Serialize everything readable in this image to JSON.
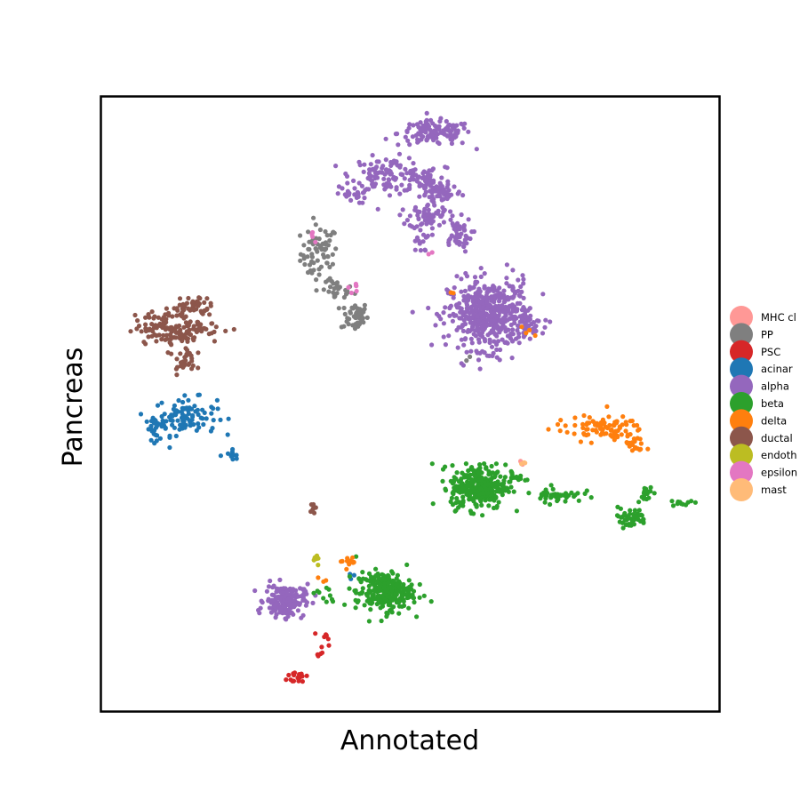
{
  "chart_data": {
    "type": "scatter",
    "title": "",
    "xlabel": "Annotated",
    "ylabel": "Pancreas",
    "xlim": [
      0,
      100
    ],
    "ylim": [
      0,
      100
    ],
    "grid": false,
    "ticks": false,
    "legend_placement": "right",
    "series": [
      {
        "name": "MHC cl",
        "color": "#ff9896",
        "clusters": [
          {
            "cx": 68.0,
            "cy": 40.3,
            "sx": 0.4,
            "sy": 0.3,
            "n": 4
          }
        ]
      },
      {
        "name": "PP",
        "color": "#7f7f7f",
        "clusters": [
          {
            "cx": 35.3,
            "cy": 74.5,
            "sx": 1.5,
            "sy": 2.3,
            "n": 70
          },
          {
            "cx": 38.3,
            "cy": 68.4,
            "sx": 1.3,
            "sy": 0.8,
            "n": 25
          },
          {
            "cx": 41.0,
            "cy": 64.3,
            "sx": 1.1,
            "sy": 1.2,
            "n": 45
          },
          {
            "cx": 59.2,
            "cy": 57.5,
            "sx": 0.4,
            "sy": 0.4,
            "n": 2
          }
        ]
      },
      {
        "name": "PSC",
        "color": "#d62728",
        "clusters": [
          {
            "cx": 32.1,
            "cy": 5.7,
            "sx": 1.0,
            "sy": 0.6,
            "n": 20
          },
          {
            "cx": 35.1,
            "cy": 9.6,
            "sx": 0.4,
            "sy": 0.6,
            "n": 6
          },
          {
            "cx": 36.4,
            "cy": 12.0,
            "sx": 0.5,
            "sy": 0.6,
            "n": 7
          }
        ]
      },
      {
        "name": "acinar",
        "color": "#1f77b4",
        "clusters": [
          {
            "cx": 13.7,
            "cy": 48.0,
            "sx": 2.5,
            "sy": 1.5,
            "n": 95
          },
          {
            "cx": 9.0,
            "cy": 46.0,
            "sx": 0.9,
            "sy": 0.9,
            "n": 25
          },
          {
            "cx": 21.0,
            "cy": 41.7,
            "sx": 1.0,
            "sy": 0.4,
            "n": 10
          },
          {
            "cx": 40.2,
            "cy": 22.3,
            "sx": 0.4,
            "sy": 0.4,
            "n": 3
          }
        ]
      },
      {
        "name": "alpha",
        "color": "#9467bd",
        "clusters": [
          {
            "cx": 54.0,
            "cy": 94.0,
            "sx": 3.0,
            "sy": 1.0,
            "n": 130
          },
          {
            "cx": 46.5,
            "cy": 87.3,
            "sx": 3.0,
            "sy": 1.4,
            "n": 120
          },
          {
            "cx": 52.8,
            "cy": 85.5,
            "sx": 1.4,
            "sy": 1.5,
            "n": 60
          },
          {
            "cx": 55.5,
            "cy": 84.5,
            "sx": 1.4,
            "sy": 0.9,
            "n": 40
          },
          {
            "cx": 53.0,
            "cy": 80.5,
            "sx": 1.6,
            "sy": 1.0,
            "n": 60
          },
          {
            "cx": 57.5,
            "cy": 77.5,
            "sx": 1.2,
            "sy": 1.4,
            "n": 50
          },
          {
            "cx": 40.5,
            "cy": 84.0,
            "sx": 1.2,
            "sy": 0.7,
            "n": 20
          },
          {
            "cx": 51.8,
            "cy": 76.5,
            "sx": 0.8,
            "sy": 1.0,
            "n": 15
          },
          {
            "cx": 62.8,
            "cy": 64.5,
            "sx": 3.3,
            "sy": 2.8,
            "n": 520
          },
          {
            "cx": 69.0,
            "cy": 63.0,
            "sx": 1.2,
            "sy": 1.0,
            "n": 20
          },
          {
            "cx": 29.7,
            "cy": 18.0,
            "sx": 1.6,
            "sy": 1.3,
            "n": 170
          },
          {
            "cx": 33.0,
            "cy": 19.5,
            "sx": 0.6,
            "sy": 0.6,
            "n": 4
          }
        ]
      },
      {
        "name": "beta",
        "color": "#2ca02c",
        "clusters": [
          {
            "cx": 61.0,
            "cy": 36.5,
            "sx": 2.2,
            "sy": 1.8,
            "n": 300
          },
          {
            "cx": 67.0,
            "cy": 37.8,
            "sx": 1.1,
            "sy": 0.8,
            "n": 20
          },
          {
            "cx": 73.8,
            "cy": 35.3,
            "sx": 2.0,
            "sy": 0.6,
            "n": 45
          },
          {
            "cx": 85.5,
            "cy": 31.5,
            "sx": 1.4,
            "sy": 0.8,
            "n": 50
          },
          {
            "cx": 88.0,
            "cy": 35.5,
            "sx": 0.7,
            "sy": 0.6,
            "n": 15
          },
          {
            "cx": 94.0,
            "cy": 34.0,
            "sx": 0.8,
            "sy": 0.3,
            "n": 12
          },
          {
            "cx": 45.8,
            "cy": 19.5,
            "sx": 2.3,
            "sy": 1.6,
            "n": 260
          },
          {
            "cx": 36.5,
            "cy": 19.0,
            "sx": 1.5,
            "sy": 1.0,
            "n": 10
          }
        ]
      },
      {
        "name": "delta",
        "color": "#ff7f0e",
        "clusters": [
          {
            "cx": 80.5,
            "cy": 46.0,
            "sx": 3.6,
            "sy": 1.0,
            "n": 85
          },
          {
            "cx": 86.5,
            "cy": 43.5,
            "sx": 0.8,
            "sy": 1.0,
            "n": 20
          },
          {
            "cx": 40.0,
            "cy": 24.5,
            "sx": 0.6,
            "sy": 0.6,
            "n": 12
          },
          {
            "cx": 56.0,
            "cy": 68.0,
            "sx": 0.4,
            "sy": 0.4,
            "n": 2
          },
          {
            "cx": 69.0,
            "cy": 61.8,
            "sx": 0.5,
            "sy": 0.4,
            "n": 4
          },
          {
            "cx": 35.7,
            "cy": 21.6,
            "sx": 0.4,
            "sy": 0.4,
            "n": 3
          }
        ]
      },
      {
        "name": "ductal",
        "color": "#8c564b",
        "clusters": [
          {
            "cx": 12.5,
            "cy": 62.5,
            "sx": 3.5,
            "sy": 1.4,
            "n": 150
          },
          {
            "cx": 14.8,
            "cy": 66.0,
            "sx": 1.4,
            "sy": 0.9,
            "n": 40
          },
          {
            "cx": 13.5,
            "cy": 57.3,
            "sx": 0.9,
            "sy": 1.2,
            "n": 30
          },
          {
            "cx": 34.0,
            "cy": 33.2,
            "sx": 0.3,
            "sy": 0.5,
            "n": 8
          }
        ]
      },
      {
        "name": "endoth",
        "color": "#bcbd22",
        "clusters": [
          {
            "cx": 34.8,
            "cy": 24.6,
            "sx": 0.3,
            "sy": 0.5,
            "n": 8
          }
        ]
      },
      {
        "name": "epsilon",
        "color": "#e377c2",
        "clusters": [
          {
            "cx": 34.8,
            "cy": 77.5,
            "sx": 0.6,
            "sy": 0.6,
            "n": 4
          },
          {
            "cx": 40.5,
            "cy": 69.0,
            "sx": 0.5,
            "sy": 0.5,
            "n": 6
          },
          {
            "cx": 53.0,
            "cy": 74.4,
            "sx": 0.4,
            "sy": 0.4,
            "n": 2
          }
        ]
      },
      {
        "name": "mast",
        "color": "#ffbb78",
        "clusters": [
          {
            "cx": 68.4,
            "cy": 40.6,
            "sx": 0.3,
            "sy": 0.3,
            "n": 3
          }
        ]
      }
    ]
  }
}
